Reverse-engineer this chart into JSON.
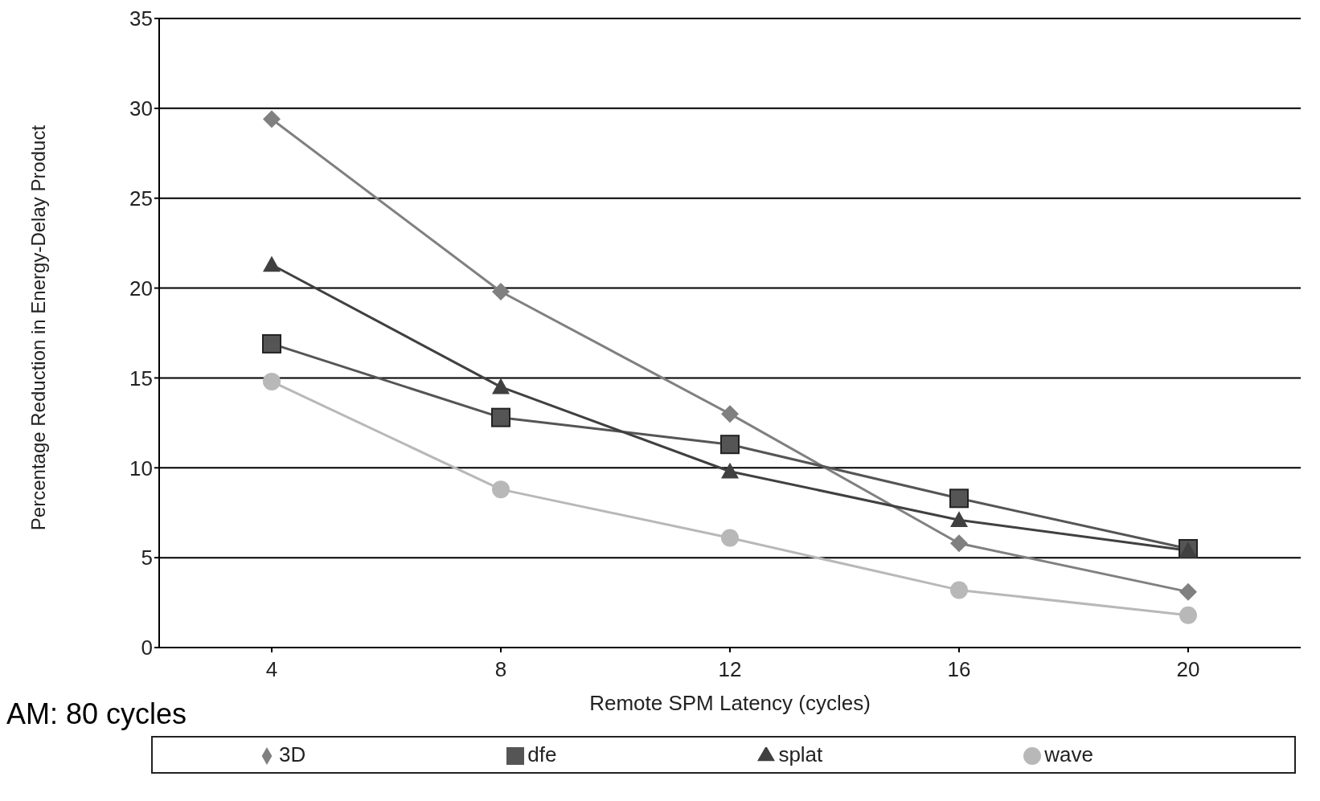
{
  "chart_data": {
    "type": "line",
    "xlabel": "Remote SPM Latency (cycles)",
    "ylabel": "Percentage Reduction in Energy-Delay Product",
    "categories": [
      "4",
      "8",
      "12",
      "16",
      "20"
    ],
    "series": [
      {
        "name": "3D",
        "color": "#808080",
        "marker": "diamond",
        "values": [
          29.4,
          19.8,
          13.0,
          5.8,
          3.1
        ]
      },
      {
        "name": "dfe",
        "color": "#555555",
        "marker": "square",
        "values": [
          16.9,
          12.8,
          11.3,
          8.3,
          5.5
        ]
      },
      {
        "name": "splat",
        "color": "#404040",
        "marker": "triangle",
        "values": [
          21.3,
          14.5,
          9.8,
          7.1,
          5.4
        ]
      },
      {
        "name": "wave",
        "color": "#b8b8b8",
        "marker": "circle",
        "values": [
          14.8,
          8.8,
          6.1,
          3.2,
          1.8
        ]
      }
    ],
    "ylim": [
      0,
      35
    ],
    "yticks": [
      0,
      5,
      10,
      15,
      20,
      25,
      30,
      35
    ],
    "grid": "y",
    "legend": "bottom",
    "annotations": [
      "AM: 80 cycles"
    ]
  }
}
